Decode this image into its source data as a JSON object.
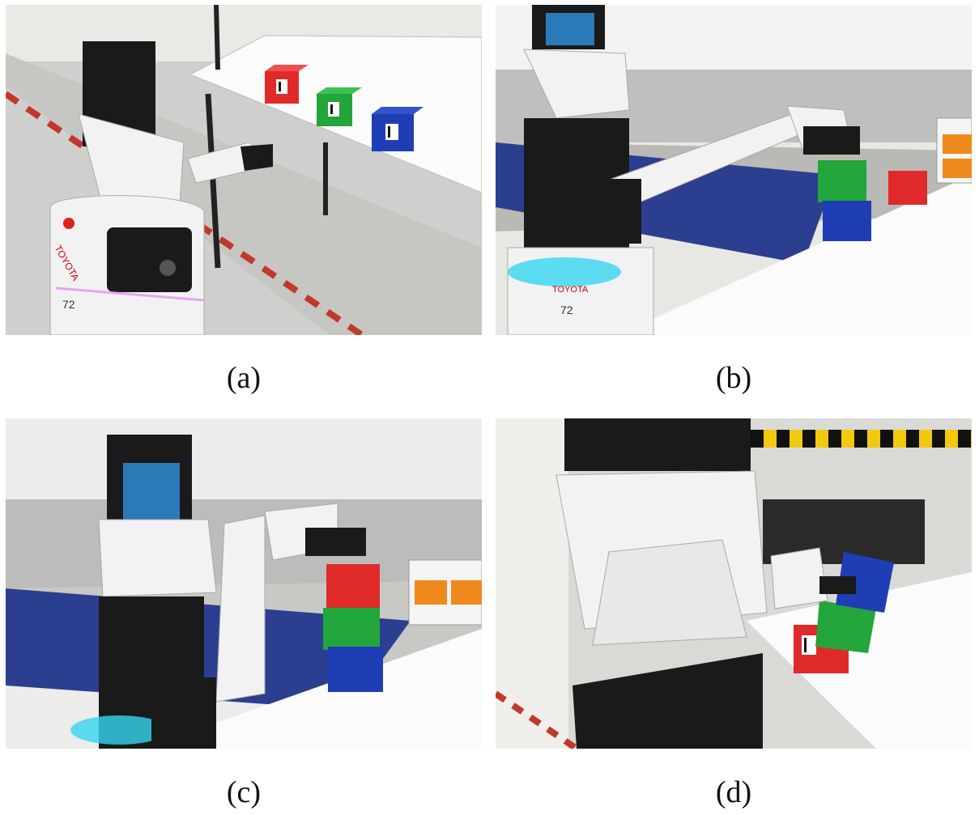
{
  "panels": [
    {
      "id": "a",
      "caption": "(a)",
      "robot_brand": "TOYOTA",
      "robot_badge": "72"
    },
    {
      "id": "b",
      "caption": "(b)",
      "robot_brand": "TOYOTA",
      "robot_badge": "72"
    },
    {
      "id": "c",
      "caption": "(c)"
    },
    {
      "id": "d",
      "caption": "(d)"
    }
  ],
  "colors": {
    "cube_red": "#e02a2a",
    "cube_green": "#22a53a",
    "cube_blue": "#1f3eb5",
    "mat_blue": "#2c3e8f",
    "robot_white": "#f2f2f2",
    "robot_black": "#1a1a1a",
    "led_cyan": "#35d6f0"
  }
}
